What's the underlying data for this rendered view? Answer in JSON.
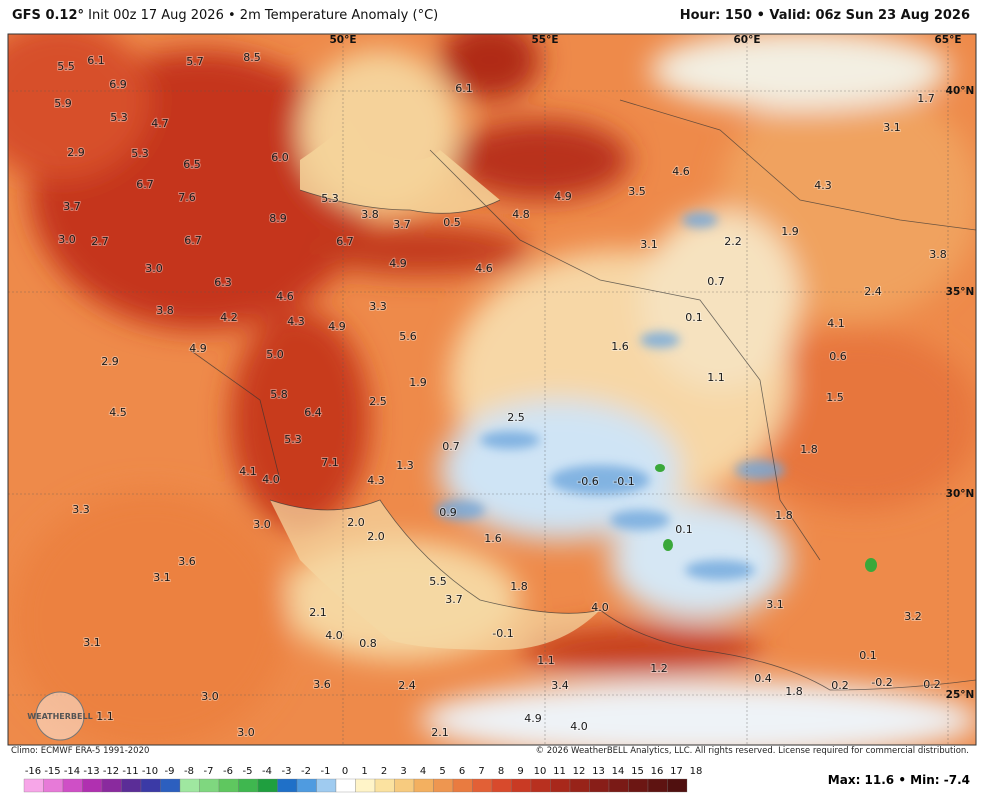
{
  "header": {
    "model": "GFS 0.12°",
    "separator": "•",
    "init": "Init 00z 17 Aug 2026",
    "field": "2m Temperature Anomaly (°C)",
    "valid": "Hour: 150 • Valid: 06z Sun 23 Aug 2026"
  },
  "longitudes": [
    "50°E",
    "55°E",
    "60°E",
    "65°E"
  ],
  "latitudes": [
    "40°N",
    "35°N",
    "30°N",
    "25°N"
  ],
  "map_labels": [
    "5.5",
    "6.1",
    "5.7",
    "8.5",
    "6.9",
    "5.9",
    "5.3",
    "4.7",
    "2.9",
    "5.3",
    "6.5",
    "6.0",
    "6.7",
    "7.6",
    "5.3",
    "3.7",
    "8.9",
    "3.8",
    "3.7",
    "0.5",
    "4.8",
    "4.9",
    "3.5",
    "4.6",
    "4.3",
    "3.1",
    "1.7",
    "6.1",
    "3.0",
    "2.7",
    "6.7",
    "6.7",
    "3.1",
    "2.2",
    "1.9",
    "3.8",
    "3.0",
    "4.9",
    "4.6",
    "6.3",
    "0.7",
    "2.4",
    "4.6",
    "3.3",
    "3.8",
    "4.2",
    "4.3",
    "4.9",
    "0.1",
    "4.1",
    "5.6",
    "1.6",
    "4.9",
    "5.0",
    "2.9",
    "0.6",
    "1.9",
    "1.1",
    "5.8",
    "2.5",
    "1.5",
    "4.5",
    "6.4",
    "2.5",
    "5.3",
    "0.7",
    "1.8",
    "7.1",
    "1.3",
    "4.1",
    "4.0",
    "4.3",
    "-0.6",
    "-0.1",
    "3.3",
    "3.0",
    "2.0",
    "0.9",
    "1.8",
    "0.1",
    "2.0",
    "1.6",
    "3.6",
    "3.1",
    "5.5",
    "1.8",
    "3.7",
    "4.0",
    "3.1",
    "3.2",
    "2.1",
    "4.0",
    "-0.1",
    "0.8",
    "3.1",
    "1.1",
    "1.2",
    "0.1",
    "0.4",
    "3.6",
    "2.4",
    "3.4",
    "1.8",
    "0.2",
    "-0.2",
    "0.2",
    "3.0",
    "1.1",
    "4.9",
    "4.0",
    "3.0",
    "2.1"
  ],
  "logo": "WEATHERBELL",
  "climo": "Climo: ECMWF ERA-5 1991-2020",
  "copyright": "© 2026 WeatherBELL Analytics, LLC. All rights reserved. License required for commercial distribution.",
  "colorbar_ticks": [
    "-16",
    "-15",
    "-14",
    "-13",
    "-12",
    "-11",
    "-10",
    "-9",
    "-8",
    "-7",
    "-6",
    "-5",
    "-4",
    "-3",
    "-2",
    "-1",
    "0",
    "1",
    "2",
    "3",
    "4",
    "5",
    "6",
    "7",
    "8",
    "9",
    "10",
    "11",
    "12",
    "13",
    "14",
    "15",
    "16",
    "17",
    "18"
  ],
  "extremes": "Max: 11.6 • Min: -7.4"
}
